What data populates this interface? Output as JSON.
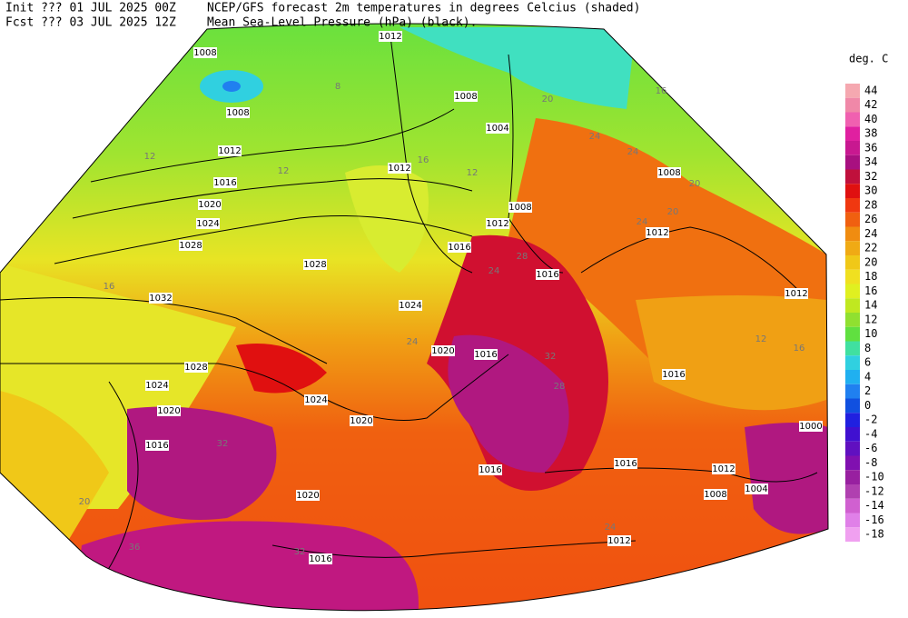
{
  "header": {
    "init_label": "Init  ??? 01 JUL 2025 00Z",
    "fcst_label": "Fcst ??? 03 JUL 2025 12Z",
    "title_line1": "NCEP/GFS forecast 2m temperatures in degrees Celcius (shaded)",
    "title_line2": "Mean Sea-Level Pressure (hPa) (black)."
  },
  "legend": {
    "unit": "deg. C",
    "ticks": [
      {
        "value": 44,
        "color": "#f5a8b0"
      },
      {
        "value": 42,
        "color": "#f088a8"
      },
      {
        "value": 40,
        "color": "#f060b0"
      },
      {
        "value": 38,
        "color": "#e020a0"
      },
      {
        "value": 36,
        "color": "#c81890"
      },
      {
        "value": 34,
        "color": "#a81080"
      },
      {
        "value": 32,
        "color": "#c0103c"
      },
      {
        "value": 30,
        "color": "#e01010"
      },
      {
        "value": 28,
        "color": "#f03810"
      },
      {
        "value": 26,
        "color": "#f06010"
      },
      {
        "value": 24,
        "color": "#f08c10"
      },
      {
        "value": 22,
        "color": "#f0aa14"
      },
      {
        "value": 20,
        "color": "#f0c818"
      },
      {
        "value": 18,
        "color": "#f0e020"
      },
      {
        "value": 16,
        "color": "#e0f020"
      },
      {
        "value": 14,
        "color": "#c0e820"
      },
      {
        "value": 12,
        "color": "#90e030"
      },
      {
        "value": 10,
        "color": "#60e040"
      },
      {
        "value": 8,
        "color": "#40e0a0"
      },
      {
        "value": 6,
        "color": "#30d0e0"
      },
      {
        "value": 4,
        "color": "#20b0f0"
      },
      {
        "value": 2,
        "color": "#2080f0"
      },
      {
        "value": 0,
        "color": "#1050e0"
      },
      {
        "value": -2,
        "color": "#2020e0"
      },
      {
        "value": -4,
        "color": "#4010d0"
      },
      {
        "value": -6,
        "color": "#6010c0"
      },
      {
        "value": -8,
        "color": "#8010b0"
      },
      {
        "value": -10,
        "color": "#9820a0"
      },
      {
        "value": -12,
        "color": "#b040b0"
      },
      {
        "value": -14,
        "color": "#d060d0"
      },
      {
        "value": -16,
        "color": "#e080e8"
      },
      {
        "value": -18,
        "color": "#f0a0f0"
      }
    ]
  },
  "isobar_labels": [
    "1012",
    "1008",
    "1008",
    "1008",
    "1004",
    "1012",
    "1012",
    "1016",
    "1020",
    "1024",
    "1028",
    "1028",
    "1032",
    "1024",
    "1016",
    "1012",
    "1008",
    "1016",
    "1008",
    "1012",
    "1012",
    "1020",
    "1016",
    "1016",
    "1028",
    "1024",
    "1020",
    "1024",
    "1020",
    "1016",
    "1020",
    "1016",
    "1016",
    "1012",
    "1008",
    "1004",
    "1000",
    "1012",
    "1016"
  ],
  "temperature_labels": [
    "12",
    "8",
    "12",
    "16",
    "12",
    "16",
    "20",
    "16",
    "24",
    "24",
    "20",
    "20",
    "24",
    "24",
    "20",
    "32",
    "36",
    "32",
    "24",
    "28",
    "32",
    "28",
    "24",
    "16",
    "12"
  ]
}
